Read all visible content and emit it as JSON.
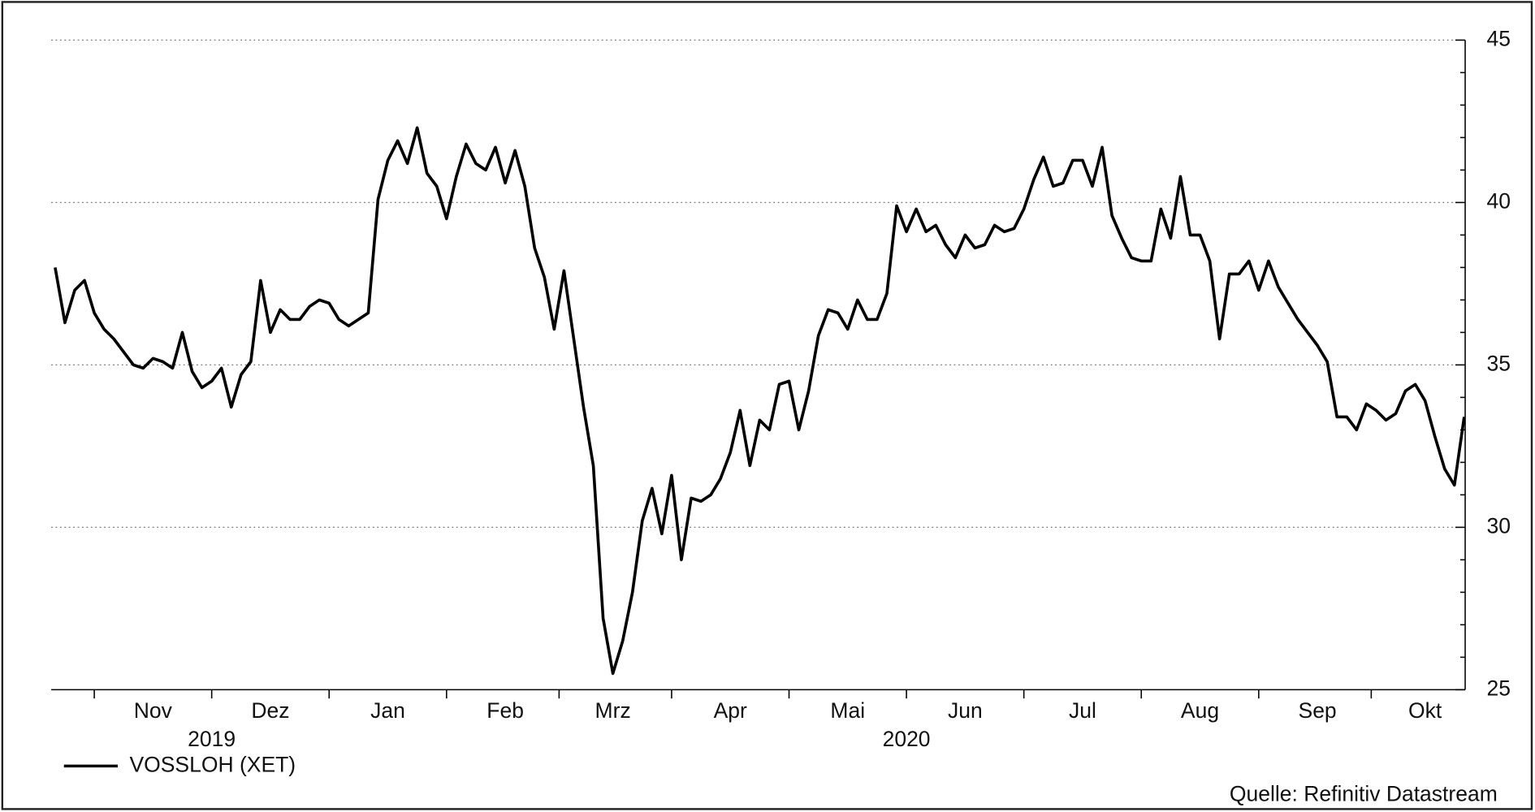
{
  "chart_data": {
    "type": "line",
    "categories": [
      null,
      null,
      null,
      null,
      null,
      null,
      null,
      null,
      null,
      null,
      "Nov",
      null,
      null,
      null,
      null,
      null,
      null,
      null,
      null,
      null,
      null,
      null,
      "Dez",
      null,
      null,
      null,
      null,
      null,
      null,
      null,
      null,
      null,
      null,
      null,
      "Jan",
      null,
      null,
      null,
      null,
      null,
      null,
      null,
      null,
      null,
      null,
      null,
      "Feb",
      null,
      null,
      null,
      null,
      null,
      null,
      null,
      null,
      null,
      null,
      "Mrz",
      null,
      null,
      null,
      null,
      null,
      null,
      null,
      null,
      null,
      null,
      null,
      "Apr",
      null,
      null,
      null,
      null,
      null,
      null,
      null,
      null,
      null,
      null,
      null,
      "Mai",
      null,
      null,
      null,
      null,
      null,
      null,
      null,
      null,
      null,
      null,
      null,
      "Jun",
      null,
      null,
      null,
      null,
      null,
      null,
      null,
      null,
      null,
      null,
      null,
      "Jul",
      null,
      null,
      null,
      null,
      null,
      null,
      null,
      null,
      null,
      null,
      null,
      "Aug",
      null,
      null,
      null,
      null,
      null,
      null,
      null,
      null,
      null,
      null,
      null,
      "Sep",
      null,
      null,
      null,
      null,
      null,
      null,
      null,
      null,
      null,
      null,
      "Okt",
      null,
      null,
      null,
      null
    ],
    "year_labels": [
      "2019",
      "2020"
    ],
    "series": [
      {
        "name": "VOSSLOH (XET)",
        "color": "#000000",
        "values": [
          38.0,
          36.3,
          37.3,
          37.6,
          36.6,
          36.1,
          35.8,
          35.4,
          35.0,
          34.9,
          35.2,
          35.1,
          34.9,
          36.0,
          34.8,
          34.3,
          34.5,
          34.9,
          33.7,
          34.7,
          35.1,
          37.6,
          36.0,
          36.7,
          36.4,
          36.4,
          36.8,
          37.0,
          36.9,
          36.4,
          36.2,
          36.4,
          36.6,
          40.1,
          41.3,
          41.9,
          41.2,
          42.3,
          40.9,
          40.5,
          39.5,
          40.8,
          41.8,
          41.2,
          41.0,
          41.7,
          40.6,
          41.6,
          40.5,
          38.6,
          37.7,
          36.1,
          37.9,
          35.8,
          33.7,
          31.9,
          27.2,
          25.5,
          26.5,
          28.0,
          30.2,
          31.2,
          29.8,
          31.6,
          29.0,
          30.9,
          30.8,
          31.0,
          31.5,
          32.3,
          33.6,
          31.9,
          33.3,
          33.0,
          34.4,
          34.5,
          33.0,
          34.2,
          35.9,
          36.7,
          36.6,
          36.1,
          37.0,
          36.4,
          36.4,
          37.2,
          39.9,
          39.1,
          39.8,
          39.1,
          39.3,
          38.7,
          38.3,
          39.0,
          38.6,
          38.7,
          39.3,
          39.1,
          39.2,
          39.8,
          40.7,
          41.4,
          40.5,
          40.6,
          41.3,
          41.3,
          40.5,
          41.7,
          39.6,
          38.9,
          38.3,
          38.2,
          38.2,
          39.8,
          38.9,
          40.8,
          39.0,
          39.0,
          38.2,
          35.8,
          37.8,
          37.8,
          38.2,
          37.3,
          38.2,
          37.4,
          36.9,
          36.4,
          36.0,
          35.6,
          35.1,
          33.4,
          33.4,
          33.0,
          33.8,
          33.6,
          33.3,
          33.5,
          34.2,
          34.4,
          33.9,
          32.8,
          31.8,
          31.3,
          33.4
        ]
      }
    ],
    "ylim": [
      25,
      45
    ],
    "yticks": [
      25,
      30,
      35,
      40,
      45
    ],
    "y_axis_side": "right",
    "grid": true,
    "legend": "bottom-left",
    "source": "Quelle: Refinitiv Datastream"
  }
}
